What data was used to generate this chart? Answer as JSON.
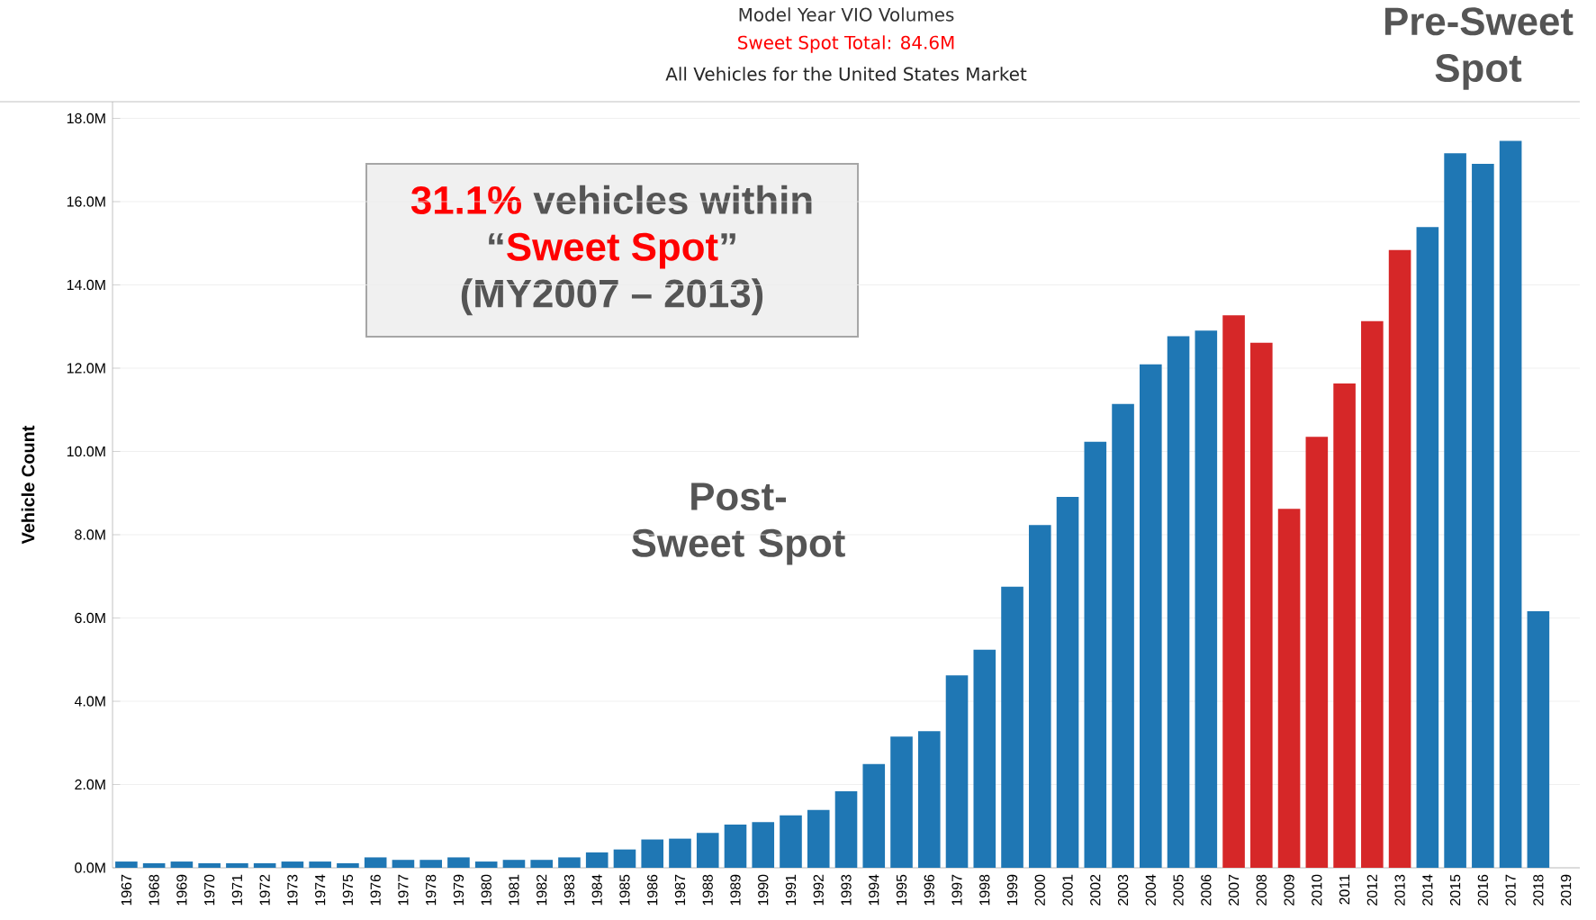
{
  "chart_data": {
    "type": "bar",
    "title": "Model Year VIO Volumes",
    "subtitle": "Sweet Spot Total:  84.6M",
    "ylabel": "Vehicle Count",
    "categories": [
      "1967",
      "1968",
      "1969",
      "1970",
      "1971",
      "1972",
      "1973",
      "1974",
      "1975",
      "1976",
      "1977",
      "1978",
      "1979",
      "1980",
      "1981",
      "1982",
      "1983",
      "1984",
      "1985",
      "1986",
      "1987",
      "1988",
      "1989",
      "1990",
      "1991",
      "1992",
      "1993",
      "1994",
      "1995",
      "1996",
      "1997",
      "1998",
      "1999",
      "2000",
      "2001",
      "2002",
      "2003",
      "2004",
      "2005",
      "2006",
      "2007",
      "2008",
      "2009",
      "2010",
      "2011",
      "2012",
      "2013",
      "2014",
      "2015",
      "2016",
      "2017",
      "2018",
      "2019"
    ],
    "values": [
      0.15,
      0.11,
      0.15,
      0.11,
      0.11,
      0.11,
      0.15,
      0.15,
      0.11,
      0.25,
      0.19,
      0.19,
      0.25,
      0.15,
      0.19,
      0.19,
      0.25,
      0.37,
      0.44,
      0.68,
      0.7,
      0.84,
      1.04,
      1.1,
      1.26,
      1.39,
      1.84,
      2.49,
      3.15,
      3.28,
      4.62,
      5.24,
      6.75,
      8.23,
      8.91,
      10.23,
      11.14,
      12.09,
      12.77,
      12.9,
      13.27,
      12.61,
      8.62,
      10.35,
      11.63,
      13.13,
      14.84,
      15.39,
      17.16,
      16.91,
      17.46,
      6.16,
      null
    ],
    "colors": [
      "#1f77b4",
      "#1f77b4",
      "#1f77b4",
      "#1f77b4",
      "#1f77b4",
      "#1f77b4",
      "#1f77b4",
      "#1f77b4",
      "#1f77b4",
      "#1f77b4",
      "#1f77b4",
      "#1f77b4",
      "#1f77b4",
      "#1f77b4",
      "#1f77b4",
      "#1f77b4",
      "#1f77b4",
      "#1f77b4",
      "#1f77b4",
      "#1f77b4",
      "#1f77b4",
      "#1f77b4",
      "#1f77b4",
      "#1f77b4",
      "#1f77b4",
      "#1f77b4",
      "#1f77b4",
      "#1f77b4",
      "#1f77b4",
      "#1f77b4",
      "#1f77b4",
      "#1f77b4",
      "#1f77b4",
      "#1f77b4",
      "#1f77b4",
      "#1f77b4",
      "#1f77b4",
      "#1f77b4",
      "#1f77b4",
      "#1f77b4",
      "#d62728",
      "#d62728",
      "#d62728",
      "#d62728",
      "#d62728",
      "#d62728",
      "#d62728",
      "#1f77b4",
      "#1f77b4",
      "#1f77b4",
      "#1f77b4",
      "#1f77b4",
      "#1f77b4"
    ],
    "ylim": [
      0,
      18.4
    ],
    "yticks": [
      {
        "value": 0,
        "label": "0.0M"
      },
      {
        "value": 2,
        "label": "2.0M"
      },
      {
        "value": 4,
        "label": "4.0M"
      },
      {
        "value": 6,
        "label": "6.0M"
      },
      {
        "value": 8,
        "label": "8.0M"
      },
      {
        "value": 10,
        "label": "10.0M"
      },
      {
        "value": 12,
        "label": "12.0M"
      },
      {
        "value": 14,
        "label": "14.0M"
      },
      {
        "value": 16,
        "label": "16.0M"
      },
      {
        "value": 18,
        "label": "18.0M"
      }
    ],
    "grid": "y",
    "annotations": [
      "All Vehicles for the United States Market",
      "31.1%",
      "vehicles within",
      "“",
      "Sweet Spot",
      "”",
      "(MY2007 – 2013)",
      "Post-Sweet Spot",
      "Pre-Sweet Spot"
    ]
  }
}
